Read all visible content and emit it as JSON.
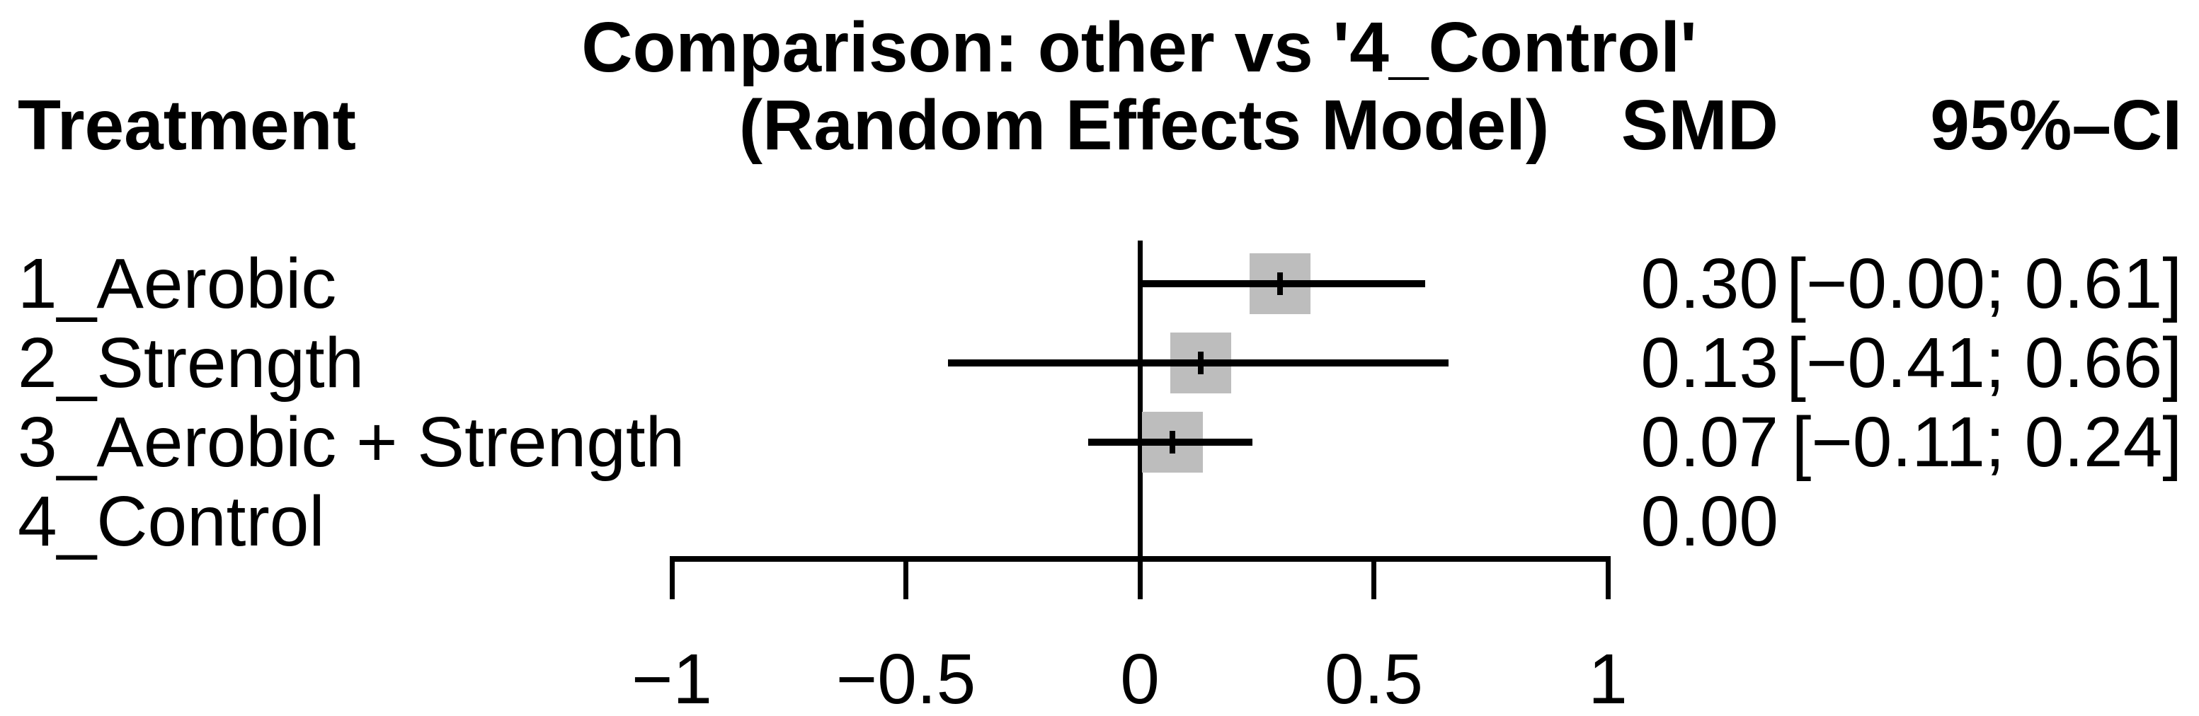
{
  "figure": {
    "columns": {
      "treatment": "Treatment",
      "effect": "SMD",
      "ci": "95%–CI"
    }
  },
  "chart_data": {
    "type": "scatter",
    "variant": "forest-plot",
    "title": "Comparison: other vs '4_Control'",
    "subtitle": "(Random Effects Model)",
    "effect_measure": "SMD",
    "comparison": "other vs '4_Control'",
    "model": "Random Effects Model",
    "xlim": [
      -1,
      1
    ],
    "grid": false,
    "reference_value": 0,
    "x_ticks": [
      {
        "value": -1,
        "label": "−1"
      },
      {
        "value": -0.5,
        "label": "−0.5"
      },
      {
        "value": 0,
        "label": "0"
      },
      {
        "value": 0.5,
        "label": "0.5"
      },
      {
        "value": 1,
        "label": "1"
      }
    ],
    "rows": [
      {
        "treatment": "1_Aerobic",
        "smd": 0.3,
        "ci_lower": -0.0,
        "ci_upper": 0.61,
        "smd_label": "0.30",
        "ci_label": "[−0.00; 0.61]",
        "has_marker": true
      },
      {
        "treatment": "2_Strength",
        "smd": 0.13,
        "ci_lower": -0.41,
        "ci_upper": 0.66,
        "smd_label": "0.13",
        "ci_label": "[−0.41; 0.66]",
        "has_marker": true
      },
      {
        "treatment": "3_Aerobic + Strength",
        "smd": 0.07,
        "ci_lower": -0.11,
        "ci_upper": 0.24,
        "smd_label": "0.07",
        "ci_label": "[−0.11; 0.24]",
        "has_marker": true
      },
      {
        "treatment": "4_Control",
        "smd": 0.0,
        "smd_label": "0.00",
        "ci_label": "",
        "has_marker": false
      }
    ],
    "marker_color": "#bdbdbd",
    "line_color": "#000000"
  }
}
